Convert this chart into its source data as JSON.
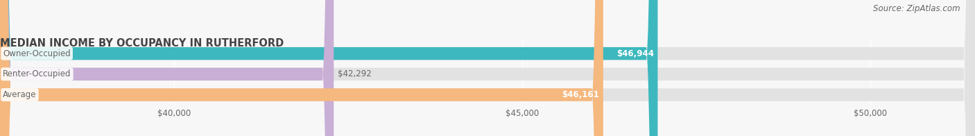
{
  "title": "MEDIAN INCOME BY OCCUPANCY IN RUTHERFORD",
  "source": "Source: ZipAtlas.com",
  "categories": [
    "Owner-Occupied",
    "Renter-Occupied",
    "Average"
  ],
  "values": [
    46944,
    42292,
    46161
  ],
  "bar_colors": [
    "#3db8be",
    "#c9aed6",
    "#f5b87e"
  ],
  "bar_bg_color": "#e2e2e2",
  "value_labels": [
    "$46,944",
    "$42,292",
    "$46,161"
  ],
  "value_label_inside": [
    true,
    false,
    true
  ],
  "xlim_min": 37500,
  "xlim_max": 51500,
  "xticks": [
    40000,
    45000,
    50000
  ],
  "xtick_labels": [
    "$40,000",
    "$45,000",
    "$50,000"
  ],
  "title_fontsize": 10.5,
  "label_fontsize": 8.5,
  "tick_fontsize": 8.5,
  "source_fontsize": 8.5,
  "bar_height": 0.62,
  "bg_color": "#f7f7f7",
  "text_color": "#666666",
  "title_color": "#444444",
  "white": "#ffffff",
  "dark_label_color": "#666666"
}
